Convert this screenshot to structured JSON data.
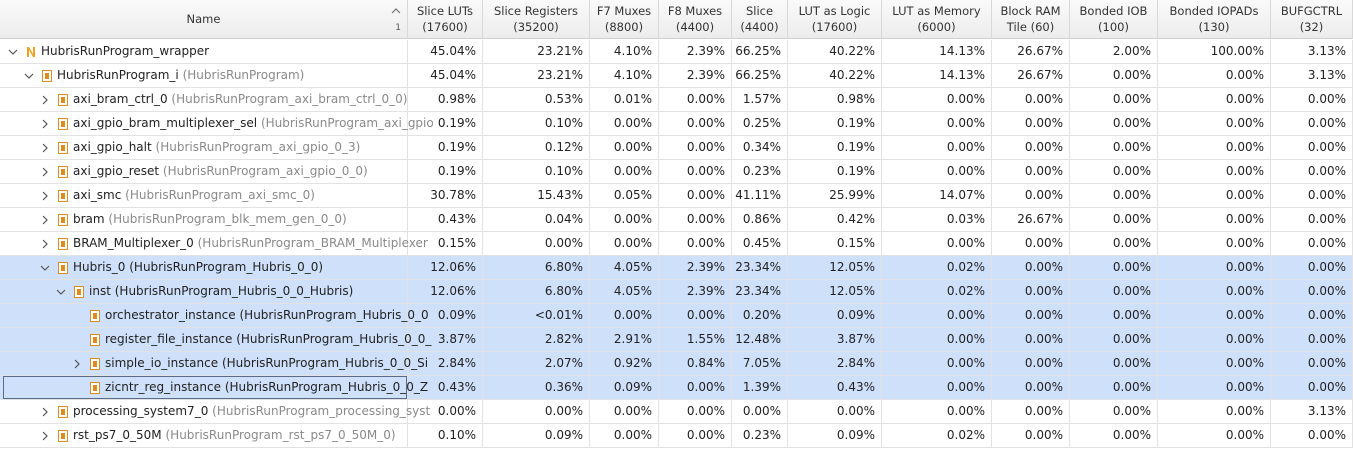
{
  "header": {
    "name": "Name",
    "sort_order": "1",
    "columns": [
      {
        "lines": [
          "Slice LUTs",
          "(17600)"
        ]
      },
      {
        "lines": [
          "Slice Registers",
          "(35200)"
        ]
      },
      {
        "lines": [
          "F7 Muxes",
          "(8800)"
        ]
      },
      {
        "lines": [
          "F8 Muxes",
          "(4400)"
        ]
      },
      {
        "lines": [
          "Slice",
          "(4400)"
        ]
      },
      {
        "lines": [
          "LUT as Logic",
          "(17600)"
        ]
      },
      {
        "lines": [
          "LUT as Memory",
          "(6000)"
        ]
      },
      {
        "lines": [
          "Block RAM",
          "Tile (60)"
        ]
      },
      {
        "lines": [
          "Bonded IOB",
          "(100)"
        ]
      },
      {
        "lines": [
          "Bonded IOPADs",
          "(130)"
        ]
      },
      {
        "lines": [
          "BUFGCTRL",
          "(32)"
        ]
      }
    ]
  },
  "rows": [
    {
      "name": "HubrisRunProgram_wrapper",
      "top": true,
      "expanded": true,
      "values": [
        "45.04%",
        "23.21%",
        "4.10%",
        "2.39%",
        "66.25%",
        "40.22%",
        "14.13%",
        "26.67%",
        "2.00%",
        "100.00%",
        "3.13%"
      ],
      "children": [
        {
          "name": "HubrisRunProgram_i",
          "module": "(HubrisRunProgram)",
          "expanded": true,
          "values": [
            "45.04%",
            "23.21%",
            "4.10%",
            "2.39%",
            "66.25%",
            "40.22%",
            "14.13%",
            "26.67%",
            "0.00%",
            "0.00%",
            "3.13%"
          ],
          "children": [
            {
              "name": "axi_bram_ctrl_0",
              "module": "(HubrisRunProgram_axi_bram_ctrl_0_0)",
              "expanded": false,
              "values": [
                "0.98%",
                "0.53%",
                "0.01%",
                "0.00%",
                "1.57%",
                "0.98%",
                "0.00%",
                "0.00%",
                "0.00%",
                "0.00%",
                "0.00%"
              ]
            },
            {
              "name": "axi_gpio_bram_multiplexer_sel",
              "module": "(HubrisRunProgram_axi_gpio",
              "expanded": false,
              "values": [
                "0.19%",
                "0.10%",
                "0.00%",
                "0.00%",
                "0.25%",
                "0.19%",
                "0.00%",
                "0.00%",
                "0.00%",
                "0.00%",
                "0.00%"
              ]
            },
            {
              "name": "axi_gpio_halt",
              "module": "(HubrisRunProgram_axi_gpio_0_3)",
              "expanded": false,
              "values": [
                "0.19%",
                "0.12%",
                "0.00%",
                "0.00%",
                "0.34%",
                "0.19%",
                "0.00%",
                "0.00%",
                "0.00%",
                "0.00%",
                "0.00%"
              ]
            },
            {
              "name": "axi_gpio_reset",
              "module": "(HubrisRunProgram_axi_gpio_0_0)",
              "expanded": false,
              "values": [
                "0.19%",
                "0.10%",
                "0.00%",
                "0.00%",
                "0.23%",
                "0.19%",
                "0.00%",
                "0.00%",
                "0.00%",
                "0.00%",
                "0.00%"
              ]
            },
            {
              "name": "axi_smc",
              "module": "(HubrisRunProgram_axi_smc_0)",
              "expanded": false,
              "values": [
                "30.78%",
                "15.43%",
                "0.05%",
                "0.00%",
                "41.11%",
                "25.99%",
                "14.07%",
                "0.00%",
                "0.00%",
                "0.00%",
                "0.00%"
              ]
            },
            {
              "name": "bram",
              "module": "(HubrisRunProgram_blk_mem_gen_0_0)",
              "expanded": false,
              "values": [
                "0.43%",
                "0.04%",
                "0.00%",
                "0.00%",
                "0.86%",
                "0.42%",
                "0.03%",
                "26.67%",
                "0.00%",
                "0.00%",
                "0.00%"
              ]
            },
            {
              "name": "BRAM_Multiplexer_0",
              "module": "(HubrisRunProgram_BRAM_Multiplexer",
              "expanded": false,
              "values": [
                "0.15%",
                "0.00%",
                "0.00%",
                "0.00%",
                "0.45%",
                "0.15%",
                "0.00%",
                "0.00%",
                "0.00%",
                "0.00%",
                "0.00%"
              ]
            },
            {
              "name": "Hubris_0",
              "module": "(HubrisRunProgram_Hubris_0_0)",
              "expanded": true,
              "selected": true,
              "values": [
                "12.06%",
                "6.80%",
                "4.05%",
                "2.39%",
                "23.34%",
                "12.05%",
                "0.02%",
                "0.00%",
                "0.00%",
                "0.00%",
                "0.00%"
              ],
              "children": [
                {
                  "name": "inst",
                  "module": "(HubrisRunProgram_Hubris_0_0_Hubris)",
                  "expanded": true,
                  "selected": true,
                  "values": [
                    "12.06%",
                    "6.80%",
                    "4.05%",
                    "2.39%",
                    "23.34%",
                    "12.05%",
                    "0.02%",
                    "0.00%",
                    "0.00%",
                    "0.00%",
                    "0.00%"
                  ],
                  "children": [
                    {
                      "name": "orchestrator_instance",
                      "module": "(HubrisRunProgram_Hubris_0_0",
                      "selected": true,
                      "values": [
                        "0.09%",
                        "<0.01%",
                        "0.00%",
                        "0.00%",
                        "0.20%",
                        "0.09%",
                        "0.00%",
                        "0.00%",
                        "0.00%",
                        "0.00%",
                        "0.00%"
                      ]
                    },
                    {
                      "name": "register_file_instance",
                      "module": "(HubrisRunProgram_Hubris_0_0_",
                      "selected": true,
                      "values": [
                        "3.87%",
                        "2.82%",
                        "2.91%",
                        "1.55%",
                        "12.48%",
                        "3.87%",
                        "0.00%",
                        "0.00%",
                        "0.00%",
                        "0.00%",
                        "0.00%"
                      ]
                    },
                    {
                      "name": "simple_io_instance",
                      "module": "(HubrisRunProgram_Hubris_0_0_Si",
                      "expanded": false,
                      "selected": true,
                      "values": [
                        "2.84%",
                        "2.07%",
                        "0.92%",
                        "0.84%",
                        "7.05%",
                        "2.84%",
                        "0.00%",
                        "0.00%",
                        "0.00%",
                        "0.00%",
                        "0.00%"
                      ]
                    },
                    {
                      "name": "zicntr_reg_instance",
                      "module": "(HubrisRunProgram_Hubris_0_0_Z",
                      "selected": true,
                      "focused": true,
                      "values": [
                        "0.43%",
                        "0.36%",
                        "0.09%",
                        "0.00%",
                        "1.39%",
                        "0.43%",
                        "0.00%",
                        "0.00%",
                        "0.00%",
                        "0.00%",
                        "0.00%"
                      ]
                    }
                  ]
                }
              ]
            },
            {
              "name": "processing_system7_0",
              "module": "(HubrisRunProgram_processing_syst",
              "expanded": false,
              "values": [
                "0.00%",
                "0.00%",
                "0.00%",
                "0.00%",
                "0.00%",
                "0.00%",
                "0.00%",
                "0.00%",
                "0.00%",
                "0.00%",
                "3.13%"
              ]
            },
            {
              "name": "rst_ps7_0_50M",
              "module": "(HubrisRunProgram_rst_ps7_0_50M_0)",
              "expanded": false,
              "values": [
                "0.10%",
                "0.09%",
                "0.00%",
                "0.00%",
                "0.23%",
                "0.09%",
                "0.02%",
                "0.00%",
                "0.00%",
                "0.00%",
                "0.00%"
              ]
            }
          ]
        }
      ]
    }
  ]
}
